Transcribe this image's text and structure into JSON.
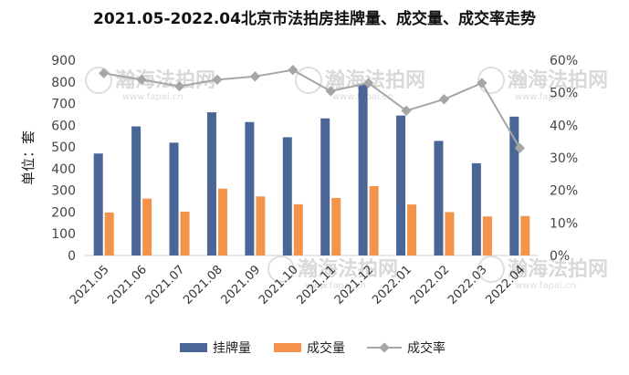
{
  "chart_data": {
    "type": "bar",
    "title": "2021.05-2022.04北京市法拍房挂牌量、成交量、成交率走势",
    "ylabel": "单位：套",
    "xlabel": "",
    "categories": [
      "2021.05",
      "2021.06",
      "2021.07",
      "2021.08",
      "2021.09",
      "2021.10",
      "2021.11",
      "2021.12",
      "2022.01",
      "2022.02",
      "2022.03",
      "2022.04"
    ],
    "series": [
      {
        "name": "挂牌量",
        "type": "bar",
        "axis": "left",
        "color": "#4a6696",
        "values": [
          470,
          595,
          520,
          660,
          615,
          545,
          632,
          790,
          645,
          528,
          425,
          640
        ]
      },
      {
        "name": "成交量",
        "type": "bar",
        "axis": "left",
        "color": "#f4934a",
        "values": [
          198,
          262,
          202,
          308,
          272,
          236,
          265,
          320,
          235,
          200,
          180,
          182
        ]
      },
      {
        "name": "成交率",
        "type": "line",
        "axis": "right",
        "color": "#a6a6a6",
        "values": [
          56,
          54,
          52,
          54,
          55,
          57,
          50.5,
          53,
          44.5,
          48,
          53,
          33
        ]
      }
    ],
    "ylim_left": [
      0,
      900
    ],
    "yticks_left": [
      "0",
      "100",
      "200",
      "300",
      "400",
      "500",
      "600",
      "700",
      "800",
      "900"
    ],
    "ylim_right": [
      0,
      60
    ],
    "yticks_right": [
      "0%",
      "10%",
      "20%",
      "30%",
      "40%",
      "50%",
      "60%"
    ],
    "grid": false,
    "legend_position": "bottom"
  },
  "watermark": {
    "logo_text": "瀚海法拍网",
    "url_text": "www.fapai.cn"
  }
}
